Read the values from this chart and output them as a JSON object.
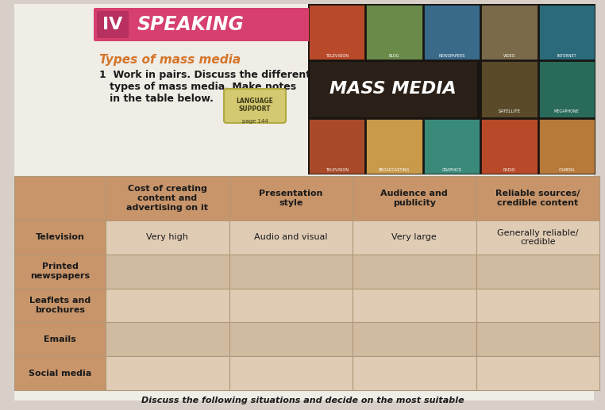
{
  "page_bg": "#d8d0c8",
  "header_box_color": "#d63f6e",
  "header_roman": "IV",
  "header_roman_bg": "#b83060",
  "header_text": "SPEAKING",
  "section_title": "Types of mass media",
  "section_title_color": "#d4762a",
  "instruction_line1": "1  Work in pairs. Discuss the different",
  "instruction_line2": "   types of mass media. Make notes",
  "instruction_line3": "   in the table below.",
  "bottom_text": "Discuss the following situations and decide on the most suitable",
  "table_header_bg": "#c8956a",
  "table_row_bg_light": "#e0ccb5",
  "table_row_bg_dark": "#d0baa0",
  "table_border_color": "#b09878",
  "col_headers": [
    "Cost of creating\ncontent and\nadvertising on it",
    "Presentation\nstyle",
    "Audience and\npublicity",
    "Reliable sources/\ncredible content"
  ],
  "row_labels": [
    "Television",
    "Printed\nnewspapers",
    "Leaflets and\nbrochures",
    "Emails",
    "Social media"
  ],
  "cell_data": [
    [
      "Very high",
      "Audio and visual",
      "Very large",
      "Generally reliable/\ncredible"
    ],
    [
      "",
      "",
      "",
      ""
    ],
    [
      "",
      "",
      "",
      ""
    ],
    [
      "",
      "",
      "",
      ""
    ],
    [
      "",
      "",
      "",
      ""
    ]
  ],
  "label_col_bg": "#c8956a",
  "collage_icon_colors_top": [
    "#b84a2a",
    "#6a8a4a",
    "#3a6a8a",
    "#7a6a4a",
    "#2a6a7a"
  ],
  "collage_icon_labels_top": [
    "TELEVISION",
    "BLOG",
    "NEWSPAPERS",
    "VIDEO",
    "INTERNET"
  ],
  "collage_icon_colors_bot": [
    "#a84a2a",
    "#c89a4a",
    "#3a8a7a",
    "#b84a2a",
    "#b87a3a"
  ],
  "collage_icon_labels_bot": [
    "TELEVISION",
    "BROADCASTING",
    "GRAPHICS",
    "RADIO",
    "CAMERA"
  ],
  "mass_media_bg": "#2a2018",
  "satellite_bg": "#5a4a2a",
  "megaphone_bg": "#2a6a5a"
}
